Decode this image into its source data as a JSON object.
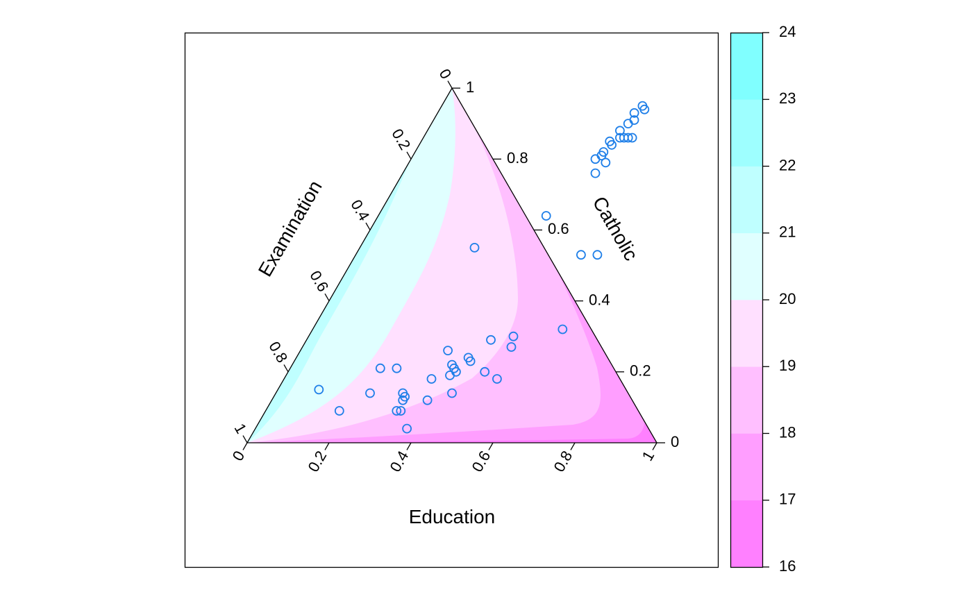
{
  "chart_data": {
    "type": "scatter",
    "subtype": "ternary",
    "axes": {
      "bottom": {
        "label": "Education",
        "ticks": [
          "0",
          "0.2",
          "0.4",
          "0.6",
          "0.8",
          "1"
        ]
      },
      "left": {
        "label": "Examination",
        "ticks": [
          "0",
          "0.2",
          "0.4",
          "0.6",
          "0.8",
          "1"
        ]
      },
      "right": {
        "label": "Catholic",
        "ticks": [
          "0",
          "0.2",
          "0.4",
          "0.6",
          "0.8",
          "1"
        ]
      }
    },
    "colorbar": {
      "range": [
        16,
        24
      ],
      "ticks": [
        "16",
        "17",
        "18",
        "19",
        "20",
        "21",
        "22",
        "23",
        "24"
      ],
      "colors": [
        "#ff80ff",
        "#ff9eff",
        "#ffbfff",
        "#ffe0ff",
        "#e0ffff",
        "#bfffff",
        "#9effff",
        "#80ffff"
      ]
    },
    "points": [
      {
        "education": 0.49,
        "catholic": 0.95
      },
      {
        "education": 0.5,
        "catholic": 0.94
      },
      {
        "education": 0.48,
        "catholic": 0.93
      },
      {
        "education": 0.49,
        "catholic": 0.91
      },
      {
        "education": 0.48,
        "catholic": 0.9
      },
      {
        "education": 0.47,
        "catholic": 0.88
      },
      {
        "education": 0.48,
        "catholic": 0.86
      },
      {
        "education": 0.47,
        "catholic": 0.84
      },
      {
        "education": 0.49,
        "catholic": 0.86
      },
      {
        "education": 0.5,
        "catholic": 0.86
      },
      {
        "education": 0.51,
        "catholic": 0.86
      },
      {
        "education": 0.46,
        "catholic": 0.85
      },
      {
        "education": 0.45,
        "catholic": 0.8
      },
      {
        "education": 0.46,
        "catholic": 0.81
      },
      {
        "education": 0.46,
        "catholic": 0.82
      },
      {
        "education": 0.48,
        "catholic": 0.79
      },
      {
        "education": 0.47,
        "catholic": 0.76
      },
      {
        "education": 0.41,
        "catholic": 0.64
      },
      {
        "education": 0.28,
        "catholic": 0.55
      },
      {
        "education": 0.55,
        "catholic": 0.53
      },
      {
        "education": 0.59,
        "catholic": 0.53
      },
      {
        "education": 0.61,
        "catholic": 0.32
      },
      {
        "education": 0.45,
        "catholic": 0.29
      },
      {
        "education": 0.5,
        "catholic": 0.3
      },
      {
        "education": 0.51,
        "catholic": 0.27
      },
      {
        "education": 0.36,
        "catholic": 0.26
      },
      {
        "education": 0.42,
        "catholic": 0.24
      },
      {
        "education": 0.43,
        "catholic": 0.23
      },
      {
        "education": 0.39,
        "catholic": 0.22
      },
      {
        "education": 0.4,
        "catholic": 0.21
      },
      {
        "education": 0.41,
        "catholic": 0.2
      },
      {
        "education": 0.4,
        "catholic": 0.19
      },
      {
        "education": 0.36,
        "catholic": 0.18
      },
      {
        "education": 0.48,
        "catholic": 0.2
      },
      {
        "education": 0.52,
        "catholic": 0.18
      },
      {
        "education": 0.22,
        "catholic": 0.21
      },
      {
        "education": 0.26,
        "catholic": 0.21
      },
      {
        "education": 0.1,
        "catholic": 0.15
      },
      {
        "education": 0.23,
        "catholic": 0.14
      },
      {
        "education": 0.31,
        "catholic": 0.14
      },
      {
        "education": 0.32,
        "catholic": 0.13
      },
      {
        "education": 0.32,
        "catholic": 0.12
      },
      {
        "education": 0.38,
        "catholic": 0.12
      },
      {
        "education": 0.43,
        "catholic": 0.14
      },
      {
        "education": 0.33,
        "catholic": 0.09
      },
      {
        "education": 0.32,
        "catholic": 0.09
      },
      {
        "education": 0.18,
        "catholic": 0.09
      },
      {
        "education": 0.37,
        "catholic": 0.04
      }
    ]
  }
}
